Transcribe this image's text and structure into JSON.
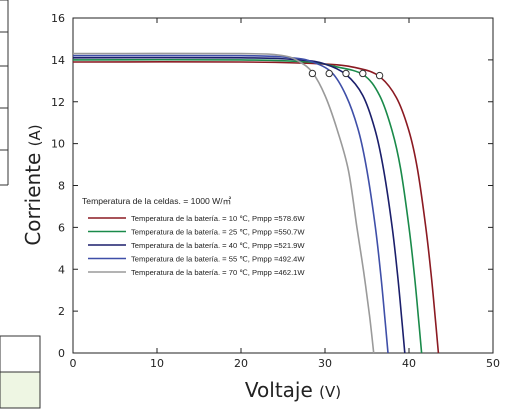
{
  "chart_data": {
    "type": "line",
    "xlabel": "Voltaje",
    "xlabel_unit": "(V)",
    "ylabel": "Corriente",
    "ylabel_unit": "(A)",
    "xlim": [
      0,
      50
    ],
    "ylim": [
      0,
      16
    ],
    "x_ticks": [
      "0",
      "10",
      "20",
      "30",
      "40",
      "50"
    ],
    "y_ticks": [
      "0",
      "2",
      "4",
      "6",
      "8",
      "10",
      "12",
      "14",
      "16"
    ],
    "grid": false,
    "legend_title": "Temperatura de la celdas. = 1000 W/㎡",
    "legend_position": "lower-left",
    "series": [
      {
        "name": "Temperatura de la batería. = 10 ℃, Pmpp =578.6W",
        "color": "#8B1A22",
        "x": [
          0,
          20,
          30,
          34,
          36.5,
          38.5,
          40,
          41,
          42,
          42.6,
          43.1,
          43.5
        ],
        "y": [
          13.9,
          13.9,
          13.8,
          13.6,
          13.2,
          12.2,
          10.6,
          8.8,
          6.0,
          3.9,
          1.8,
          0
        ]
      },
      {
        "name": "Temperatura de la batería. = 25 ℃, Pmpp =550.7W",
        "color": "#1A8A4A",
        "x": [
          0,
          20,
          28,
          31,
          34.5,
          36.5,
          38,
          39,
          40,
          40.6,
          41.1,
          41.5
        ],
        "y": [
          14.0,
          14.0,
          13.9,
          13.7,
          13.3,
          12.3,
          10.6,
          8.8,
          6.0,
          3.9,
          1.8,
          0
        ]
      },
      {
        "name": "Temperatura de la batería. = 40 ℃, Pmpp =521.9W",
        "color": "#1B1F6B",
        "x": [
          0,
          20,
          27,
          30,
          32.5,
          34.5,
          36,
          37,
          38,
          38.6,
          39.1,
          39.5
        ],
        "y": [
          14.1,
          14.1,
          14.0,
          13.8,
          13.3,
          12.3,
          10.6,
          8.7,
          6.0,
          3.9,
          1.8,
          0
        ]
      },
      {
        "name": "Temperatura de la batería. = 55 ℃, Pmpp =492.4W",
        "color": "#3F4FA8",
        "x": [
          0,
          20,
          26,
          28.5,
          30.8,
          32.5,
          34,
          35,
          36,
          36.6,
          37.1,
          37.5
        ],
        "y": [
          14.2,
          14.2,
          14.1,
          13.9,
          13.4,
          12.3,
          10.6,
          8.7,
          6.0,
          3.9,
          1.8,
          0
        ]
      },
      {
        "name": "Temperatura de la batería. = 70 ℃, Pmpp =462.1W",
        "color": "#9A9A9A",
        "x": [
          0,
          20,
          25,
          27,
          28.5,
          30,
          31.5,
          32.8,
          33.8,
          34.6,
          35.3,
          35.8
        ],
        "y": [
          14.3,
          14.3,
          14.2,
          13.9,
          13.4,
          12.3,
          10.6,
          8.7,
          6.0,
          3.9,
          1.8,
          0
        ]
      }
    ],
    "mpp_markers": [
      {
        "x": 28.5,
        "y": 13.35
      },
      {
        "x": 30.5,
        "y": 13.35
      },
      {
        "x": 32.5,
        "y": 13.35
      },
      {
        "x": 34.5,
        "y": 13.35
      },
      {
        "x": 36.5,
        "y": 13.25
      }
    ]
  }
}
